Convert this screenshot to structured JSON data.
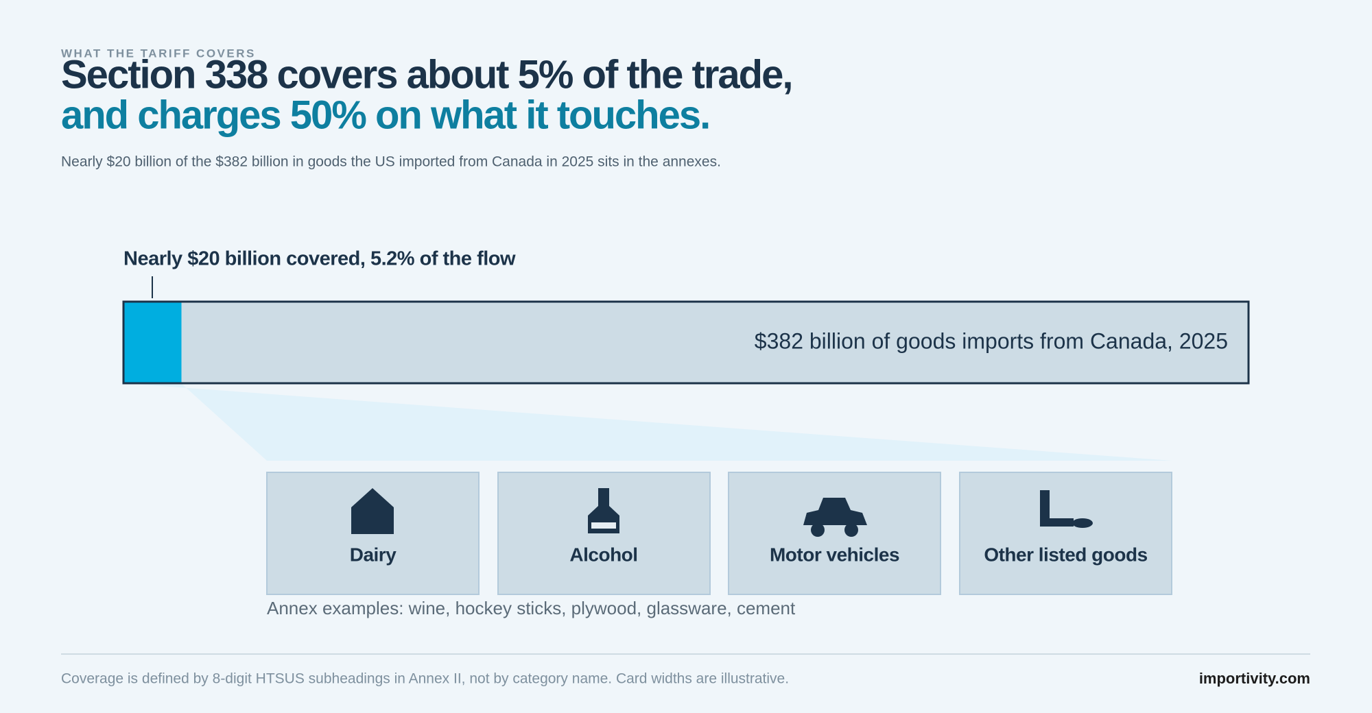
{
  "header": {
    "eyebrow": "WHAT THE TARIFF COVERS",
    "title_line1": "Section 338 covers about 5% of the trade,",
    "title_line2": "and charges 50% on what it touches.",
    "subtitle": "Nearly $20 billion of the $382 billion in goods the US imported from Canada in 2025 sits in the annexes."
  },
  "bar": {
    "callout": "Nearly $20 billion covered, 5.2% of the flow",
    "label": "$382 billion of goods imports from Canada, 2025"
  },
  "cards": [
    {
      "label": "Dairy"
    },
    {
      "label": "Alcohol"
    },
    {
      "label": "Motor vehicles"
    },
    {
      "label": "Other listed goods"
    }
  ],
  "annex_note": "Annex examples: wine, hockey sticks, plywood, glassware, cement",
  "footer": {
    "note": "Coverage is defined by 8-digit HTSUS subheadings in Annex II, not by category name. Card widths are illustrative.",
    "brand": "importivity.com"
  }
}
